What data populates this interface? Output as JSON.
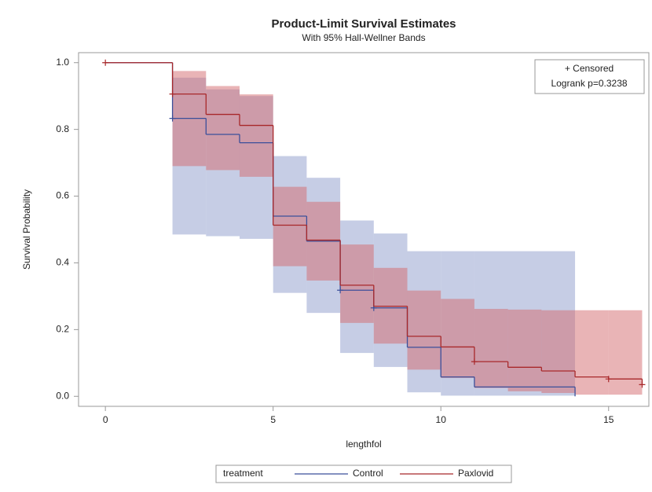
{
  "chart_data": {
    "type": "survival",
    "title": "Product-Limit Survival Estimates",
    "subtitle": "With 95% Hall-Wellner Bands",
    "x_label": "lengthfol",
    "y_label": "Survival Probability",
    "legend_title": "treatment",
    "inset": [
      "+ Censored",
      "Logrank p=0.3238"
    ],
    "xlim": [
      -0.8,
      16.2
    ],
    "ylim": [
      -0.03,
      1.03
    ],
    "xticks": [
      0,
      5,
      10,
      15
    ],
    "yticks": [
      {
        "value": 0,
        "label": "0.0"
      },
      0.2,
      0.4,
      0.6,
      0.8,
      {
        "value": 1,
        "label": "1.0"
      }
    ],
    "series": [
      {
        "name": "Control",
        "color": "#3b4f9a",
        "band_color": "#8d9ccc",
        "x": [
          0,
          2,
          3,
          4,
          5,
          6,
          7,
          8,
          9,
          10,
          11,
          14
        ],
        "values": [
          1,
          0.833,
          0.785,
          0.76,
          0.54,
          0.465,
          0.318,
          0.265,
          0.147,
          0.058,
          0.028,
          0
        ],
        "band_upper": [
          null,
          0.955,
          0.92,
          0.9,
          0.72,
          0.655,
          0.527,
          0.488,
          0.435,
          0.435,
          0.435,
          null
        ],
        "band_lower": [
          null,
          0.485,
          0.48,
          0.472,
          0.31,
          0.25,
          0.13,
          0.088,
          0.012,
          0.002,
          0.002,
          null
        ],
        "censored_x": [
          2,
          7,
          8
        ],
        "censored_values": [
          0.833,
          0.318,
          0.265
        ]
      },
      {
        "name": "Paxlovid",
        "color": "#a8282a",
        "band_color": "#d46a6e",
        "x": [
          0,
          2,
          3,
          4,
          5,
          6,
          7,
          8,
          9,
          10,
          11,
          12,
          13,
          14,
          15,
          16
        ],
        "values": [
          1,
          0.906,
          0.845,
          0.812,
          0.513,
          0.468,
          0.333,
          0.27,
          0.18,
          0.148,
          0.104,
          0.087,
          0.076,
          0.058,
          0.052,
          0.035
        ],
        "band_upper": [
          null,
          0.975,
          0.93,
          0.905,
          0.628,
          0.583,
          0.455,
          0.385,
          0.317,
          0.292,
          0.262,
          0.26,
          0.258,
          0.258,
          0.258,
          null
        ],
        "band_lower": [
          null,
          0.69,
          0.678,
          0.658,
          0.39,
          0.347,
          0.22,
          0.158,
          0.08,
          0.055,
          0.025,
          0.015,
          0.01,
          0.005,
          0.005,
          null
        ],
        "censored_x": [
          0,
          2,
          11,
          15,
          16
        ],
        "censored_values": [
          1,
          0.906,
          0.104,
          0.052,
          0.035
        ]
      }
    ]
  }
}
